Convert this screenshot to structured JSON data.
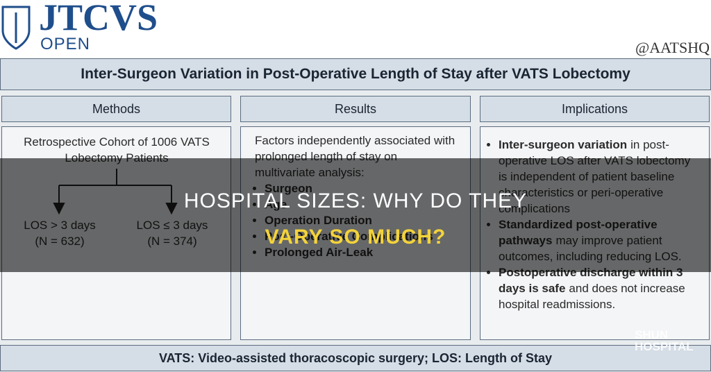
{
  "header": {
    "logo": "JTCVS",
    "logo_sub": "OPEN",
    "handle": "@AATSHQ"
  },
  "title": "Inter-Surgeon Variation in Post-Operative Length of Stay after VATS  Lobectomy",
  "methods": {
    "heading": "Methods",
    "cohort": "Retrospective Cohort of 1006 VATS Lobectomy Patients",
    "groups": [
      {
        "label": "LOS > 3 days",
        "n": "(N = 632)"
      },
      {
        "label": "LOS ≤ 3 days",
        "n": "(N = 374)"
      }
    ]
  },
  "results": {
    "heading": "Results",
    "intro": "Factors independently associated with prolonged length of stay on multivariate analysis:",
    "factors": [
      "Surgeon",
      "Age",
      "Operation Duration",
      "Post-Operative Complications",
      "Prolonged Air-Leak"
    ]
  },
  "implications": {
    "heading": "Implications",
    "points": [
      {
        "strong": "Inter-surgeon variation",
        "text": "in post-operative LOS after VATS lobectomy is independent of patient baseline characteristics or peri-operative complications"
      },
      {
        "strong": "Standardized post-operative pathways",
        "text": "may improve patient outcomes, including reducing LOS."
      },
      {
        "strong": "Postoperative discharge within 3 days is safe",
        "text": "and does not increase hospital readmissions."
      }
    ]
  },
  "footer": "VATS: Video-assisted thoracoscopic surgery; LOS: Length of Stay",
  "overlay": {
    "line1": "HOSPITAL SIZES: WHY DO THEY",
    "line2": "VARY SO MUCH?"
  },
  "watermark": {
    "top": "SHUN",
    "bottom": "HOSPITAL"
  }
}
